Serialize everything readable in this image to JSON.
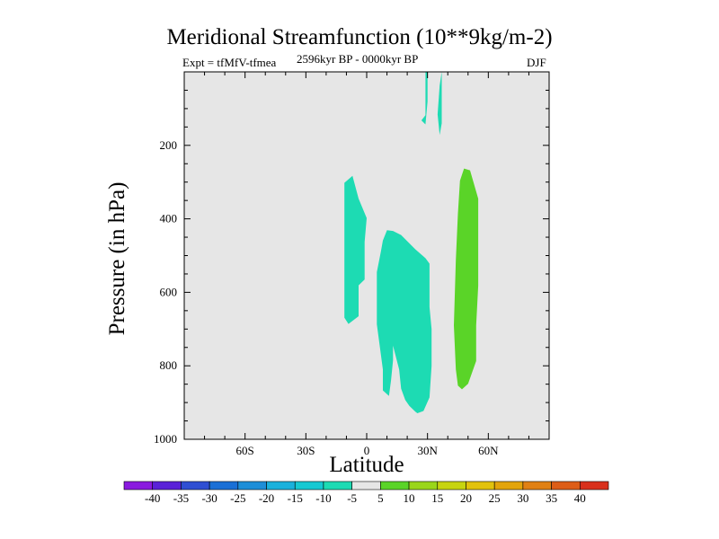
{
  "chart_data": {
    "type": "contour",
    "title": "Meridional Streamfunction (10**9kg/m-2)",
    "subtitle_left": "Expt = tfMfV-tfmea",
    "subtitle_center": "2596kyr BP - 0000kyr BP",
    "subtitle_right": "DJF",
    "xlabel": "Latitude",
    "ylabel": "Pressure (in hPa)",
    "xlim": [
      -90,
      90
    ],
    "ylim": [
      1000,
      0
    ],
    "x_ticks": [
      {
        "value": -60,
        "label": "60S"
      },
      {
        "value": -30,
        "label": "30S"
      },
      {
        "value": 0,
        "label": "0"
      },
      {
        "value": 30,
        "label": "30N"
      },
      {
        "value": 60,
        "label": "60N"
      }
    ],
    "y_ticks": [
      {
        "value": 200,
        "label": "200"
      },
      {
        "value": 400,
        "label": "400"
      },
      {
        "value": 600,
        "label": "600"
      },
      {
        "value": 800,
        "label": "800"
      },
      {
        "value": 1000,
        "label": "1000"
      }
    ],
    "background_color": "#e6e6e6",
    "colorbar": {
      "labels": [
        "-40",
        "-35",
        "-30",
        "-25",
        "-20",
        "-15",
        "-10",
        "-5",
        "5",
        "10",
        "15",
        "20",
        "25",
        "30",
        "35",
        "40"
      ],
      "colors": [
        "#8a1adf",
        "#5a22d8",
        "#2f4fd3",
        "#1a6fd6",
        "#1e8ed8",
        "#1ab1dc",
        "#16c9d2",
        "#1ddbb3",
        "#e6e6e6",
        "#5ad428",
        "#9ad61a",
        "#c7d410",
        "#e2c20c",
        "#e3a40b",
        "#e08013",
        "#dd5d17",
        "#d9301c"
      ]
    },
    "regions": [
      {
        "name": "neg-cell-equator-west",
        "level": "-10 to -5",
        "points": [
          [
            -7,
            283
          ],
          [
            -4,
            345
          ],
          [
            0,
            398
          ],
          [
            -1,
            463
          ],
          [
            -1,
            565
          ],
          [
            -4,
            581
          ],
          [
            -4,
            665
          ],
          [
            -9,
            686
          ],
          [
            -11,
            669
          ],
          [
            -11,
            302
          ]
        ]
      },
      {
        "name": "neg-cell-central",
        "level": "-10 to -5",
        "points": [
          [
            10,
            431
          ],
          [
            13,
            433
          ],
          [
            17,
            444
          ],
          [
            24,
            483
          ],
          [
            29,
            507
          ],
          [
            31,
            522
          ],
          [
            31,
            552
          ],
          [
            31,
            640
          ],
          [
            32,
            700
          ],
          [
            32,
            800
          ],
          [
            31,
            886
          ],
          [
            28,
            923
          ],
          [
            25,
            929
          ],
          [
            24,
            925
          ],
          [
            21,
            909
          ],
          [
            19,
            893
          ],
          [
            17,
            862
          ],
          [
            16,
            810
          ],
          [
            13,
            745
          ],
          [
            13,
            785
          ],
          [
            12,
            839
          ],
          [
            11,
            882
          ],
          [
            8,
            867
          ],
          [
            8,
            810
          ],
          [
            5,
            687
          ],
          [
            5,
            545
          ],
          [
            7,
            489
          ],
          [
            8,
            459
          ]
        ]
      },
      {
        "name": "neg-cell-upper-left",
        "level": "-10 to -5",
        "points": [
          [
            29,
            0
          ],
          [
            30,
            0
          ],
          [
            30,
            81
          ],
          [
            29,
            143
          ],
          [
            27,
            132
          ],
          [
            29,
            118
          ]
        ]
      },
      {
        "name": "neg-cell-upper-right",
        "level": "-10 to -5",
        "points": [
          [
            37,
            0
          ],
          [
            37,
            140
          ],
          [
            36,
            172
          ],
          [
            35,
            116
          ],
          [
            36,
            37
          ]
        ]
      },
      {
        "name": "pos-cell-north",
        "level": "5 to 10",
        "points": [
          [
            48,
            263
          ],
          [
            51,
            268
          ],
          [
            55,
            345
          ],
          [
            55,
            582
          ],
          [
            54,
            690
          ],
          [
            54,
            787
          ],
          [
            50,
            849
          ],
          [
            47,
            864
          ],
          [
            45,
            854
          ],
          [
            44,
            810
          ],
          [
            43,
            690
          ],
          [
            44,
            512
          ],
          [
            45,
            386
          ],
          [
            46,
            296
          ]
        ]
      }
    ]
  }
}
